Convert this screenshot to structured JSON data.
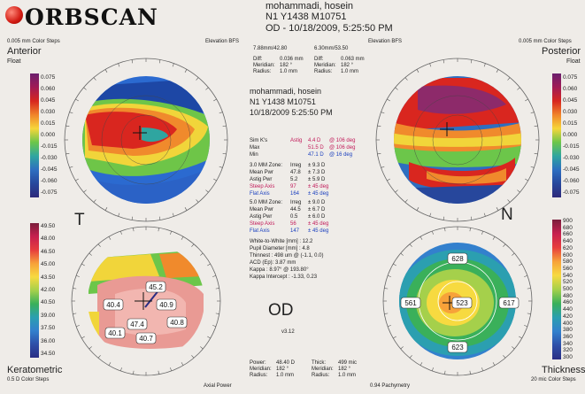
{
  "header": {
    "logo_text": "ORBSCAN",
    "patient_name": "mohammadi, hosein",
    "patient_id": "N1 Y1438 M10751",
    "exam_line": "OD - 10/18/2009, 5:25:50 PM"
  },
  "top_labels": {
    "left_steps": "0.005 mm Color Steps",
    "left_bfs": "Elevation BFS",
    "right_steps": "0.005 mm Color Steps",
    "right_bfs": "Elevation BFS",
    "left_radius": "7.88mm/42.80",
    "right_radius": "6.30mm/53.50"
  },
  "quadrants": {
    "anterior_title": "Anterior",
    "anterior_sub": "Float",
    "posterior_title": "Posterior",
    "posterior_sub": "Float",
    "keratometric_title": "Keratometric",
    "keratometric_steps": "0.5 D Color Steps",
    "keratometric_power": "Axial Power",
    "thickness_title": "Thickness",
    "thickness_steps": "20 mic Color Steps",
    "thickness_pach": "0.94 Pachymetry",
    "side_left": "T",
    "side_right": "N",
    "eye": "OD",
    "version": "v3.12"
  },
  "legends": {
    "anterior": [
      "0.075",
      "0.060",
      "0.045",
      "0.030",
      "0.015",
      "0.000",
      "-0.015",
      "-0.030",
      "-0.045",
      "-0.060",
      "-0.075"
    ],
    "keratometric": [
      "49.50",
      "48.00",
      "46.50",
      "45.00",
      "43.50",
      "42.00",
      "40.50",
      "39.00",
      "37.50",
      "36.00",
      "34.50"
    ],
    "posterior": [
      "0.075",
      "0.060",
      "0.045",
      "0.030",
      "0.015",
      "0.000",
      "-0.015",
      "-0.030",
      "-0.045",
      "-0.060",
      "-0.075"
    ],
    "thickness": [
      "900",
      "680",
      "660",
      "640",
      "620",
      "600",
      "580",
      "560",
      "540",
      "520",
      "500",
      "480",
      "460",
      "440",
      "420",
      "400",
      "380",
      "360",
      "340",
      "320",
      "300"
    ]
  },
  "diff_info": {
    "left": [
      "Diff:",
      "0.036 mm",
      "Meridian:",
      "182 °",
      "Radius:",
      "1.0 mm"
    ],
    "right": [
      "Diff:",
      "0.063 mm",
      "Meridian:",
      "182 °",
      "Radius:",
      "1.0 mm"
    ]
  },
  "center_header": {
    "name": "mohammadi, hosein",
    "id": "N1 Y1438 M10751",
    "date": "10/18/2009 5:25:50 PM"
  },
  "sim_k": [
    {
      "label": "Sim K's",
      "value": "Astig",
      "extra": "4.4 D",
      "at": "@ 106 deg"
    },
    {
      "label": "Max",
      "value": "",
      "extra": "51.5 D",
      "at": "@ 106 deg"
    },
    {
      "label": "Min",
      "value": "",
      "extra": "47.1 D",
      "at": "@ 16 deg"
    }
  ],
  "zone3": [
    {
      "label": "3.0 MM Zone:",
      "value": "Irreg",
      "extra": "± 9.3 D"
    },
    {
      "label": "Mean Pwr",
      "value": "47.8",
      "extra": "± 7.3 D"
    },
    {
      "label": "Astig Pwr",
      "value": "5.2",
      "extra": "± 5.9 D"
    },
    {
      "label": "Steep Axis",
      "value": "97",
      "extra": "± 45 deg"
    },
    {
      "label": "Flat Axis",
      "value": "164",
      "extra": "± 45 deg"
    }
  ],
  "zone5": [
    {
      "label": "5.0 MM Zone:",
      "value": "Irreg",
      "extra": "± 9.0 D"
    },
    {
      "label": "Mean Pwr",
      "value": "44.5",
      "extra": "± 6.7 D"
    },
    {
      "label": "Astig Pwr",
      "value": "0.5",
      "extra": "± 6.0 D"
    },
    {
      "label": "Steep Axis",
      "value": "56",
      "extra": "± 45 deg"
    },
    {
      "label": "Flat Axis",
      "value": "147",
      "extra": "± 45 deg"
    }
  ],
  "misc": [
    "White-to-White [mm] : 12.2",
    "Pupil Diameter [mm] : 4.8",
    "Thinnest : 498 um @ (-1.1, 0.0)",
    "ACD (Ep): 3.87 mm",
    "Kappa : 8.97° @ 193.80°",
    "Kappa Intercept : -1.33, 0.23"
  ],
  "bottom_info": {
    "left": [
      "Power:",
      "48.40 D",
      "Meridian:",
      "182 °",
      "Radius:",
      "1.0 mm"
    ],
    "right": [
      "Thick:",
      "499 mic",
      "Meridian:",
      "182 °",
      "Radius:",
      "1.0 mm"
    ]
  },
  "thickness_values": [
    "628",
    "561",
    "523",
    "617",
    "623"
  ],
  "kera_values": [
    "40.4",
    "45.2",
    "40.9",
    "47.4",
    "40.1",
    "40.7",
    "40.8"
  ]
}
